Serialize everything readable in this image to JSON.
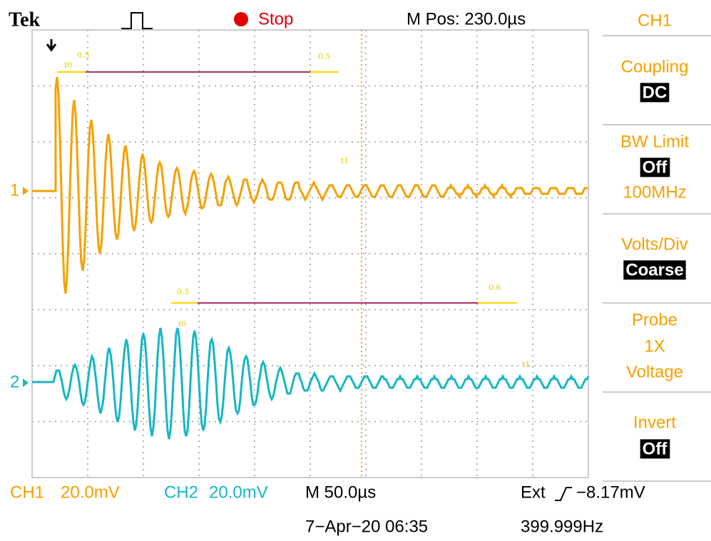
{
  "header": {
    "logo": "Tek",
    "status": "Stop",
    "position": "M Pos: 230.0µs"
  },
  "channel_markers": [
    "1",
    "2"
  ],
  "annotations": [
    "0.5",
    "t0",
    "0.5",
    "t1",
    "0.5",
    "t0",
    "0.6",
    "t1"
  ],
  "menu": {
    "title": "CH1",
    "coupling": {
      "label": "Coupling",
      "value": "DC"
    },
    "bw_limit": {
      "label": "BW Limit",
      "value": "Off",
      "note": "100MHz"
    },
    "volts_div": {
      "label": "Volts/Div",
      "value": "Coarse"
    },
    "probe": {
      "label": "Probe",
      "value": "1X",
      "note": "Voltage"
    },
    "invert": {
      "label": "Invert",
      "value": "Off"
    }
  },
  "footer": {
    "ch1_label": "CH1",
    "ch1_scale": "20.0mV",
    "ch2_label": "CH2",
    "ch2_scale": "20.0mV",
    "timebase": "M 50.0µs",
    "trigger_source": "Ext",
    "trigger_level": "−8.17mV",
    "date": "7−Apr−20 06:35",
    "frequency": "399.999Hz"
  }
}
